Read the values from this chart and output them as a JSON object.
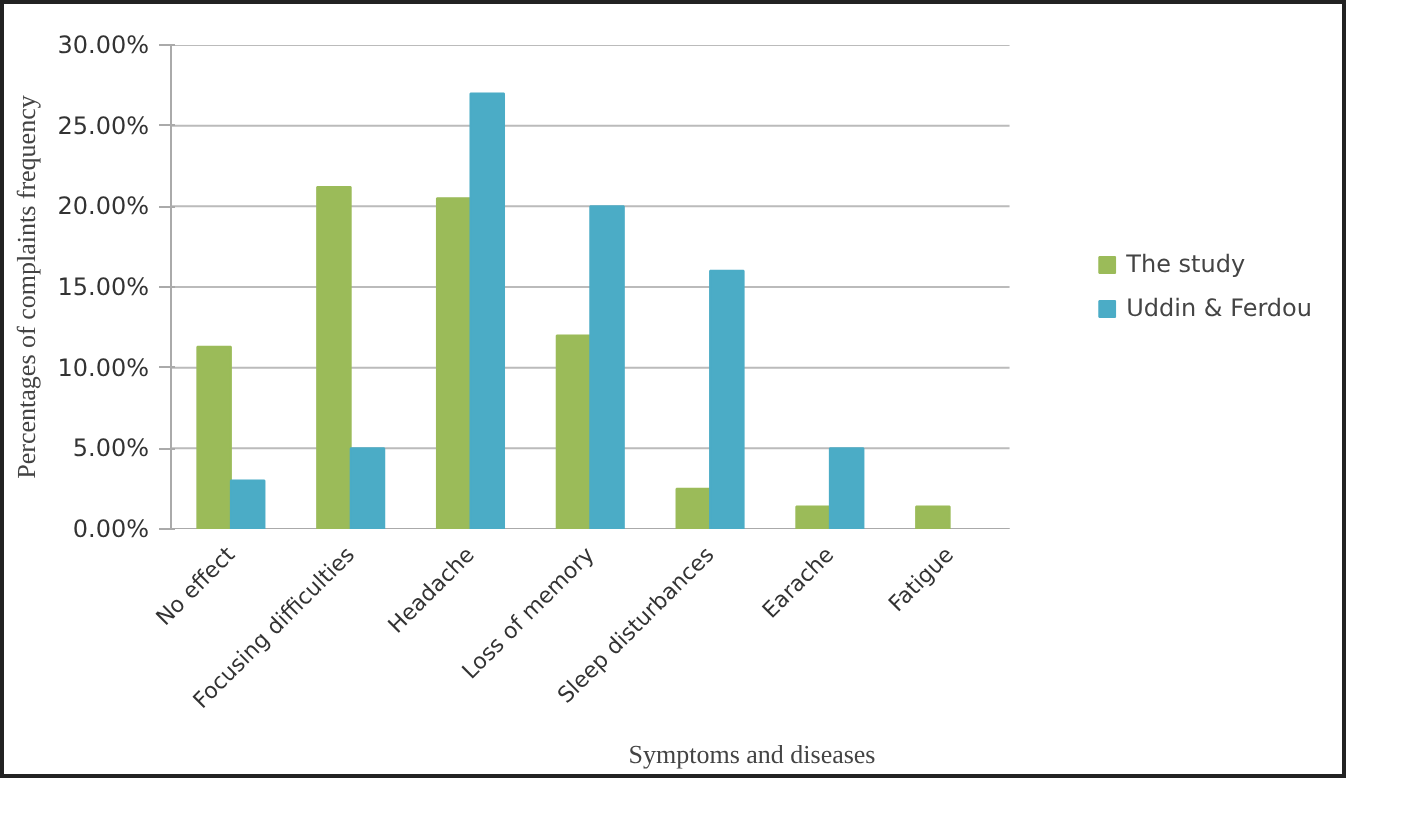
{
  "chart_data": {
    "type": "bar",
    "xlabel": "Symptoms and diseases",
    "ylabel": "Percentages of complaints frequency",
    "categories": [
      "No effect",
      "Focusing difficulties",
      "Headache",
      "Loss of memory",
      "Sleep disturbances",
      "Earache",
      "Fatigue"
    ],
    "series": [
      {
        "name": "The study",
        "color": "#9bbb59",
        "values": [
          11.3,
          21.2,
          20.5,
          12.0,
          2.5,
          1.4,
          1.4
        ]
      },
      {
        "name": "Uddin & Ferdou",
        "color": "#4bacc6",
        "values": [
          3.0,
          5.0,
          27.0,
          20.0,
          16.0,
          5.0,
          null
        ]
      }
    ],
    "ylim": [
      0,
      30
    ],
    "yticks": [
      {
        "value": 0,
        "label": "0.00%"
      },
      {
        "value": 5,
        "label": "5.00%"
      },
      {
        "value": 10,
        "label": "10.00%"
      },
      {
        "value": 15,
        "label": "15.00%"
      },
      {
        "value": 20,
        "label": "20.00%"
      },
      {
        "value": 25,
        "label": "25.00%"
      },
      {
        "value": 30,
        "label": "30.00%"
      }
    ],
    "grid": "y",
    "legend": "right"
  }
}
